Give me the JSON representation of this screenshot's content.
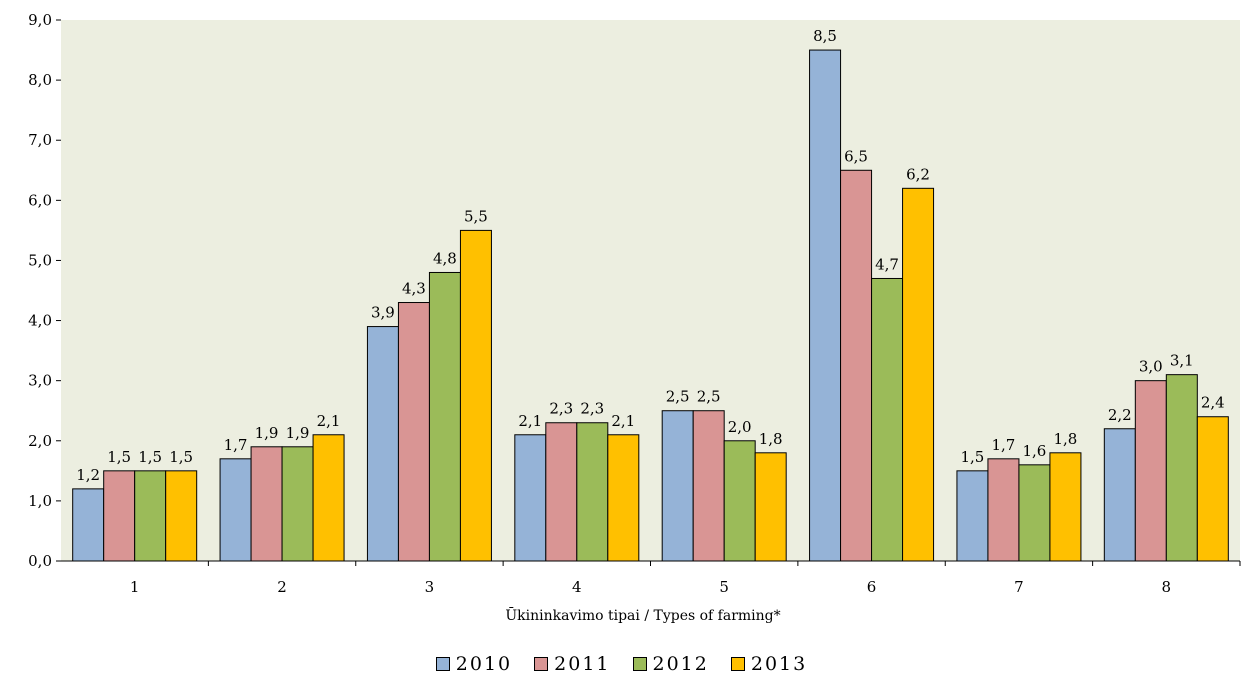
{
  "chart_data": {
    "type": "bar",
    "title": "",
    "xlabel": "Ūkininkavimo tipai / Types of farming*",
    "ylabel": "",
    "ylim": [
      0,
      9
    ],
    "yticks": [
      "0,0",
      "1,0",
      "2,0",
      "3,0",
      "4,0",
      "5,0",
      "6,0",
      "7,0",
      "8,0",
      "9,0"
    ],
    "categories": [
      "1",
      "2",
      "3",
      "4",
      "5",
      "6",
      "7",
      "8"
    ],
    "grid": false,
    "legend_position": "bottom",
    "plot_background": "#ECEEE0",
    "series": [
      {
        "name": "2010",
        "color": "#95B3D7",
        "values": [
          1.2,
          1.7,
          3.9,
          2.1,
          2.5,
          8.5,
          1.5,
          2.2
        ],
        "labels": [
          "1,2",
          "1,7",
          "3,9",
          "2,1",
          "2,5",
          "8,5",
          "1,5",
          "2,2"
        ]
      },
      {
        "name": "2011",
        "color": "#D99594",
        "values": [
          1.5,
          1.9,
          4.3,
          2.3,
          2.5,
          6.5,
          1.7,
          3.0
        ],
        "labels": [
          "1,5",
          "1,9",
          "4,3",
          "2,3",
          "2,5",
          "6,5",
          "1,7",
          "3,0"
        ]
      },
      {
        "name": "2012",
        "color": "#9BBB59",
        "values": [
          1.5,
          1.9,
          4.8,
          2.3,
          2.0,
          4.7,
          1.6,
          3.1
        ],
        "labels": [
          "1,5",
          "1,9",
          "4,8",
          "2,3",
          "2,0",
          "4,7",
          "1,6",
          "3,1"
        ]
      },
      {
        "name": "2013",
        "color": "#FFC000",
        "values": [
          1.5,
          2.1,
          5.5,
          2.1,
          1.8,
          6.2,
          1.8,
          2.4
        ],
        "labels": [
          "1,5",
          "2,1",
          "5,5",
          "2,1",
          "1,8",
          "6,2",
          "1,8",
          "2,4"
        ]
      }
    ]
  }
}
